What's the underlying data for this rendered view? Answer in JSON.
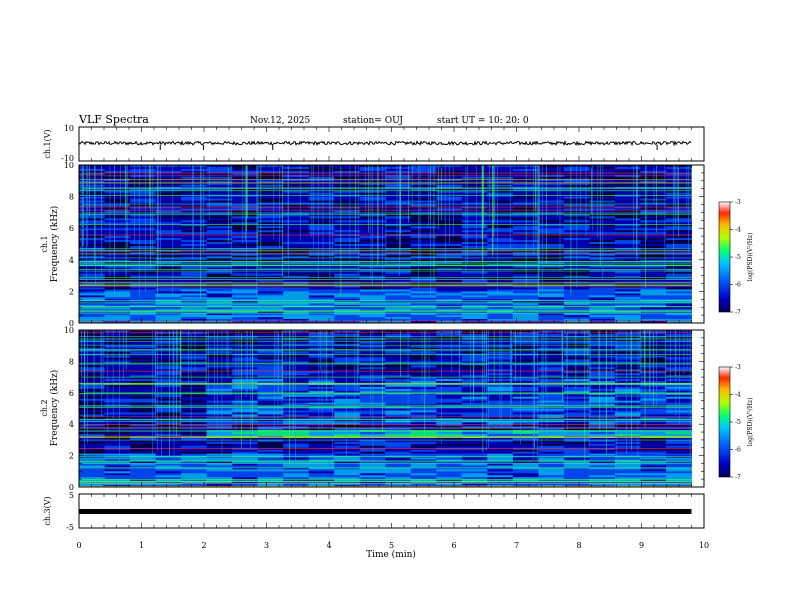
{
  "header": {
    "title": "VLF Spectra",
    "date": "Nov.12, 2025",
    "station": "station= OUJ",
    "start": "start  UT  =   10: 20: 0"
  },
  "chart_data": [
    {
      "type": "line",
      "ylabel": "ch.1(V)",
      "ylim": [
        -10,
        10
      ],
      "yticks": [
        "10",
        "-10"
      ],
      "xlim": [
        0,
        10
      ],
      "series": [
        {
          "approx_level": 0.5,
          "approx_noise": 1.0
        }
      ]
    },
    {
      "type": "heatmap",
      "ylabel": "Frequency (kHz)",
      "channel": "ch.1",
      "xlim": [
        0,
        10
      ],
      "ylim": [
        0,
        10
      ],
      "yticks": [
        "0",
        "2",
        "4",
        "6",
        "8",
        "10"
      ],
      "colorbar": {
        "label": "log(PSD)(V²/Hz)",
        "range": [
          -7,
          -3
        ],
        "ticks": [
          "-3",
          "-4",
          "-5",
          "-6",
          "-7"
        ]
      },
      "data_end_min": 9.8,
      "colors": [
        "#000040",
        "#0000b4",
        "#0050ff",
        "#00b4ff",
        "#00ff80",
        "#b4ff00",
        "#ffb400",
        "#ff0000"
      ]
    },
    {
      "type": "heatmap",
      "ylabel": "Frequency (kHz)",
      "channel": "ch.2",
      "xlim": [
        0,
        10
      ],
      "ylim": [
        0,
        10
      ],
      "yticks": [
        "0",
        "2",
        "4",
        "6",
        "8",
        "10"
      ],
      "colorbar": {
        "label": "log(PSD)(V²/Hz)",
        "range": [
          -7,
          -3
        ],
        "ticks": [
          "-3",
          "-4",
          "-5",
          "-6",
          "-7"
        ]
      },
      "data_end_min": 9.8,
      "notable_band_khz": [
        3.2,
        3.6
      ],
      "band_onset_min": 1.9
    },
    {
      "type": "line",
      "ylabel": "ch.3(V)",
      "ylim": [
        -5,
        5
      ],
      "yticks": [
        "5",
        "-5"
      ],
      "xlim": [
        0,
        10
      ],
      "series": [
        {
          "approx_level": -0.3
        }
      ]
    }
  ],
  "xaxis": {
    "label": "Time (min)",
    "ticks": [
      "0",
      "1",
      "2",
      "3",
      "4",
      "5",
      "6",
      "7",
      "8",
      "9",
      "10"
    ]
  },
  "labels": {
    "ch1_trace": "ch.1(V)",
    "ch1_spec_channel": "ch.1",
    "ch1_spec_ylabel": "Frequency (kHz)",
    "ch2_spec_channel": "ch.2",
    "ch2_spec_ylabel": "Frequency (kHz)",
    "ch3_trace": "ch.3(V)",
    "cbar_label": "log(PSD)(V²/Hz)"
  }
}
